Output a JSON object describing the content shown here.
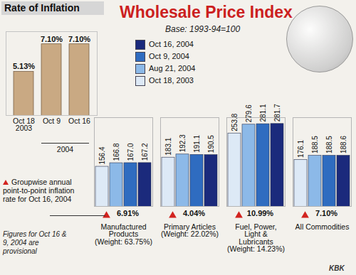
{
  "chart_data": [
    {
      "type": "bar",
      "title": "Wholesale Price Index",
      "subtitle": "Base: 1993-94=100",
      "categories": [
        "Manufactured Products",
        "Primary Articles",
        "Fuel, Power, Light & Lubricants",
        "All Commodities"
      ],
      "category_notes": [
        "(Weight: 63.75%)",
        "(Weight: 22.02%)",
        "(Weight: 14.23%)",
        null
      ],
      "series": [
        {
          "name": "Oct 16, 2004",
          "color": "#1b2a7c",
          "values": [
            167.2,
            190.5,
            281.7,
            188.6
          ],
          "value_labels": [
            "167.2",
            "190.5",
            "281.7",
            "188.6"
          ]
        },
        {
          "name": "Oct 9, 2004",
          "color": "#2f6cc0",
          "values": [
            167.0,
            191.1,
            281.1,
            188.5
          ],
          "value_labels": [
            "167.0",
            "191.1",
            "281.1",
            "188.5"
          ]
        },
        {
          "name": "Aug 21, 2004",
          "color": "#8cb9e8",
          "values": [
            166.8,
            192.3,
            279.6,
            188.5
          ],
          "value_labels": [
            "166.8",
            "192.3",
            "279.6",
            "188.5"
          ]
        },
        {
          "name": "Oct 18, 2003",
          "color": "#dde9f6",
          "values": [
            156.4,
            183.1,
            253.8,
            176.1
          ],
          "value_labels": [
            "156.4",
            "183.1",
            "253.8",
            "176.1"
          ]
        }
      ],
      "group_inflation": {
        "title": "Groupwise annual point-to-point inflation rate for Oct 16, 2004",
        "values": [
          6.91,
          4.04,
          10.99,
          7.1
        ],
        "value_labels": [
          "6.91%",
          "4.04%",
          "10.99%",
          "7.10%"
        ]
      },
      "ylim": [
        40,
        300
      ],
      "tick_labels": "x",
      "data_labels": true,
      "legend": "top",
      "notes": [
        "Figures for Oct 16 & 9, 2004 are provisional"
      ],
      "credit": "KBK"
    },
    {
      "type": "bar",
      "title": "Rate of Inflation",
      "categories": [
        "Oct 18\n2003",
        "Oct 9",
        "Oct 16"
      ],
      "category_groups": [
        {
          "label": "2004",
          "categories": [
            "Oct 9",
            "Oct 16"
          ]
        }
      ],
      "values": [
        5.13,
        7.1,
        7.1
      ],
      "value_labels": [
        "5.13%",
        "7.10%",
        "7.10%"
      ],
      "color": "#c9a983",
      "ylim": [
        2,
        8
      ],
      "tick_labels": "x",
      "data_labels": true
    }
  ]
}
